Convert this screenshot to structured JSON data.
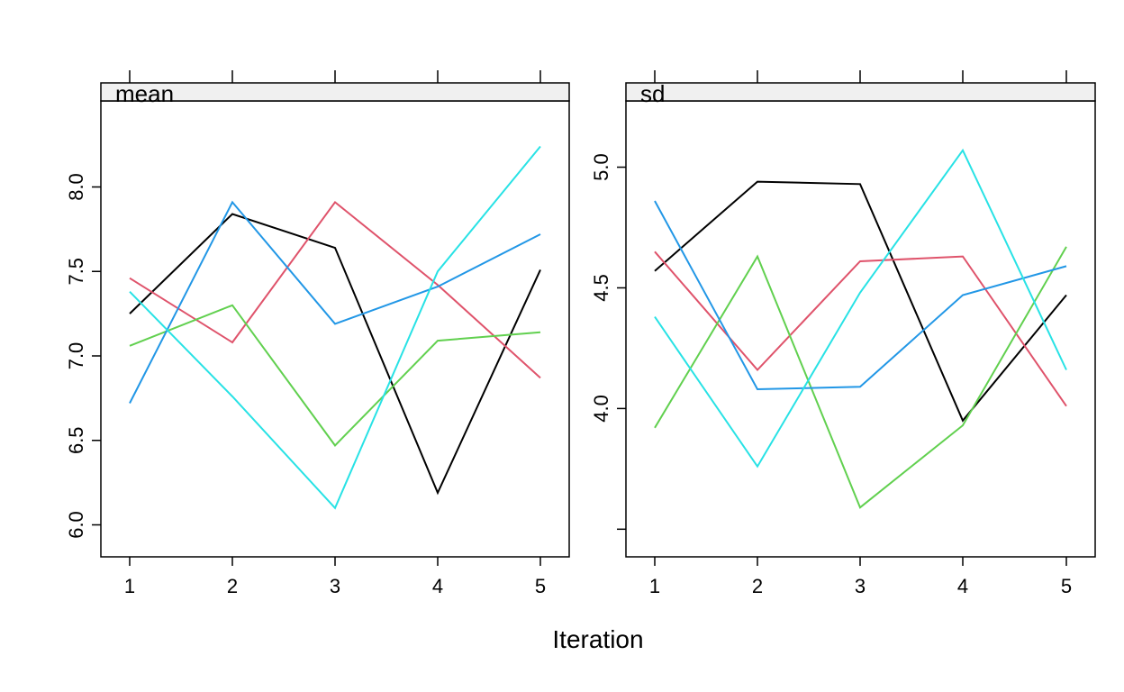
{
  "chart_data": {
    "type": "line",
    "xlabel": "Iteration",
    "x": [
      1,
      2,
      3,
      4,
      5
    ],
    "x_ticks": [
      "1",
      "2",
      "3",
      "4",
      "5"
    ],
    "colors": [
      "#000000",
      "#DF536B",
      "#61D04F",
      "#2297E6",
      "#28E2E5"
    ],
    "grid": false,
    "panels": [
      {
        "title": "mean",
        "ylim": [
          5.96,
          8.36
        ],
        "y_ticks": [
          6.0,
          6.5,
          7.0,
          7.5,
          8.0
        ],
        "y_tick_labels": [
          "6.0",
          "6.5",
          "7.0",
          "7.5",
          "8.0"
        ],
        "series": [
          {
            "color": "#000000",
            "values": [
              7.25,
              7.84,
              7.64,
              6.19,
              7.51
            ]
          },
          {
            "color": "#DF536B",
            "values": [
              7.46,
              7.08,
              7.91,
              7.42,
              6.87
            ]
          },
          {
            "color": "#61D04F",
            "values": [
              7.06,
              7.3,
              6.47,
              7.09,
              7.14
            ]
          },
          {
            "color": "#2297E6",
            "values": [
              6.72,
              7.91,
              7.19,
              7.41,
              7.72
            ]
          },
          {
            "color": "#28E2E5",
            "values": [
              7.38,
              6.76,
              6.1,
              7.5,
              8.24
            ]
          }
        ]
      },
      {
        "title": "sd",
        "ylim": [
          3.49,
          5.17
        ],
        "y_ticks": [
          3.5,
          4.0,
          4.5,
          5.0
        ],
        "y_tick_labels": [
          "",
          "4.0",
          "4.5",
          "5.0"
        ],
        "series": [
          {
            "color": "#000000",
            "values": [
              4.57,
              4.94,
              4.93,
              3.95,
              4.47
            ]
          },
          {
            "color": "#DF536B",
            "values": [
              4.65,
              4.16,
              4.61,
              4.63,
              4.01
            ]
          },
          {
            "color": "#61D04F",
            "values": [
              3.92,
              4.63,
              3.59,
              3.93,
              4.67
            ]
          },
          {
            "color": "#2297E6",
            "values": [
              4.86,
              4.08,
              4.09,
              4.47,
              4.59
            ]
          },
          {
            "color": "#28E2E5",
            "values": [
              4.38,
              3.76,
              4.48,
              5.07,
              4.16
            ]
          }
        ]
      }
    ]
  }
}
